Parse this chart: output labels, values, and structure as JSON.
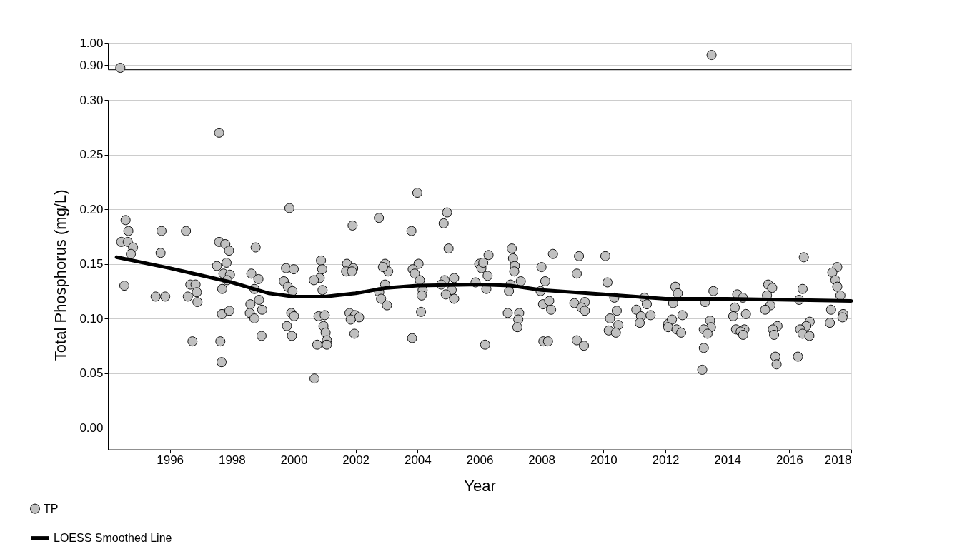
{
  "chart_data": [
    {
      "type": "scatter",
      "xlim": [
        1994,
        2018
      ],
      "xticks": [
        1996,
        1998,
        2000,
        2002,
        2004,
        2006,
        2008,
        2010,
        2012,
        2014,
        2016,
        2018
      ],
      "ylim": [
        0.88,
        1.0
      ],
      "yticks": [
        {
          "value": 0.9,
          "label": "0.90"
        },
        {
          "value": 1.0,
          "label": "1.00"
        }
      ],
      "grid": "y",
      "tick_labels": "y",
      "series": [
        {
          "color": "#c0c0c0",
          "marker": "circle",
          "x": [
            1994.4,
            2013.49
          ],
          "values": [
            0.887,
            0.945
          ]
        }
      ]
    },
    {
      "type": "scatter",
      "xlabel": "Year",
      "ylabel": "Total Phosphorus (mg/L)",
      "xlim": [
        1994,
        2018
      ],
      "xticks": [
        1996,
        1998,
        2000,
        2002,
        2004,
        2006,
        2008,
        2010,
        2012,
        2014,
        2016,
        2018
      ],
      "ylim": [
        -0.02,
        0.3
      ],
      "yticks": [
        {
          "value": 0,
          "label": "0.00"
        },
        {
          "value": 0.05,
          "label": "0.05"
        },
        {
          "value": 0.1,
          "label": "0.10"
        },
        {
          "value": 0.15,
          "label": "0.15"
        },
        {
          "value": 0.2,
          "label": "0.20"
        },
        {
          "value": 0.25,
          "label": "0.25"
        },
        {
          "value": 0.3,
          "label": "0.30"
        }
      ],
      "grid": "y",
      "legend": "bottom left",
      "line_style": "solid",
      "series": [
        {
          "name": "TP",
          "type": "scatter",
          "color": "#c0c0c0",
          "marker": "circle",
          "x": [
            1994.57,
            1994.66,
            1994.43,
            1994.64,
            1994.81,
            1994.74,
            1994.53,
            1995.73,
            1995.7,
            1995.54,
            1995.85,
            1996.52,
            1996.66,
            1996.83,
            1996.58,
            1996.87,
            1996.89,
            1996.73,
            1997.59,
            1997.59,
            1997.79,
            1997.91,
            1997.83,
            1997.52,
            1997.73,
            1997.94,
            1997.85,
            1997.69,
            1997.68,
            1997.92,
            1997.63,
            1997.67,
            1998.77,
            1998.63,
            1998.86,
            1998.73,
            1998.88,
            1998.6,
            1998.58,
            1998.98,
            1998.73,
            1998.96,
            1999.86,
            1999.75,
            2000.0,
            1999.68,
            1999.81,
            1999.96,
            1999.92,
            2000.01,
            1999.78,
            1999.94,
            2000.88,
            2000.92,
            2000.84,
            2000.65,
            2000.93,
            2000.8,
            2001.0,
            2000.96,
            2001.03,
            2001.07,
            2000.76,
            2001.07,
            2000.67,
            2001.9,
            2001.72,
            2001.92,
            2001.69,
            2001.88,
            2001.8,
            2001.98,
            2002.11,
            2001.84,
            2001.96,
            2002.75,
            2002.95,
            2003.05,
            2002.88,
            2002.95,
            2002.76,
            2002.82,
            2003.01,
            2003.99,
            2004.95,
            2004.84,
            2003.8,
            2005.0,
            2004.03,
            2003.84,
            2003.91,
            2004.07,
            2004.16,
            2004.13,
            2004.11,
            2003.82,
            2004.87,
            2005.18,
            2004.76,
            2005.1,
            2004.91,
            2005.18,
            2005.99,
            2006.06,
            2005.87,
            2006.29,
            2006.12,
            2006.26,
            2006.22,
            2006.18,
            2007.04,
            2007.08,
            2007.14,
            2007.12,
            2007.33,
            2007.0,
            2006.95,
            2006.91,
            2007.28,
            2007.25,
            2007.22,
            2008.37,
            2008.0,
            2008.12,
            2007.97,
            2008.05,
            2008.25,
            2008.31,
            2008.06,
            2008.21,
            2009.21,
            2009.14,
            2009.06,
            2009.4,
            2009.29,
            2009.4,
            2009.14,
            2009.37,
            2010.06,
            2010.13,
            2010.35,
            2010.43,
            2010.21,
            2010.48,
            2010.17,
            2010.4,
            2011.32,
            2011.4,
            2011.06,
            2011.52,
            2011.21,
            2011.17,
            2012.09,
            2012.32,
            2012.4,
            2012.25,
            2012.55,
            2012.21,
            2012.09,
            2012.36,
            2012.51,
            2013.55,
            2013.28,
            2013.44,
            2013.47,
            2013.24,
            2013.36,
            2013.24,
            2013.19,
            2014.32,
            2014.5,
            2014.24,
            2014.6,
            2014.19,
            2014.28,
            2014.55,
            2014.43,
            2014.51,
            2015.32,
            2015.45,
            2015.28,
            2015.39,
            2015.22,
            2015.62,
            2015.47,
            2015.51,
            2015.55,
            2015.59,
            2016.47,
            2016.43,
            2016.32,
            2016.66,
            2016.55,
            2016.35,
            2016.43,
            2016.65,
            2016.28,
            2017.55,
            2017.39,
            2017.49,
            2017.55,
            2017.65,
            2017.35,
            2017.74,
            2017.72,
            2017.31
          ],
          "values": [
            0.19,
            0.18,
            0.17,
            0.17,
            0.165,
            0.159,
            0.13,
            0.18,
            0.16,
            0.12,
            0.12,
            0.18,
            0.131,
            0.131,
            0.12,
            0.124,
            0.115,
            0.079,
            0.27,
            0.17,
            0.168,
            0.162,
            0.151,
            0.148,
            0.141,
            0.14,
            0.135,
            0.127,
            0.104,
            0.107,
            0.079,
            0.06,
            0.165,
            0.141,
            0.136,
            0.127,
            0.117,
            0.113,
            0.105,
            0.108,
            0.1,
            0.084,
            0.201,
            0.146,
            0.145,
            0.134,
            0.129,
            0.125,
            0.105,
            0.102,
            0.093,
            0.084,
            0.153,
            0.145,
            0.137,
            0.135,
            0.126,
            0.102,
            0.103,
            0.093,
            0.087,
            0.08,
            0.076,
            0.076,
            0.045,
            0.185,
            0.15,
            0.146,
            0.143,
            0.143,
            0.105,
            0.103,
            0.101,
            0.099,
            0.086,
            0.192,
            0.15,
            0.143,
            0.147,
            0.131,
            0.124,
            0.118,
            0.112,
            0.215,
            0.197,
            0.187,
            0.18,
            0.164,
            0.15,
            0.145,
            0.141,
            0.135,
            0.126,
            0.121,
            0.106,
            0.082,
            0.135,
            0.137,
            0.131,
            0.126,
            0.122,
            0.118,
            0.15,
            0.146,
            0.133,
            0.158,
            0.151,
            0.139,
            0.127,
            0.076,
            0.164,
            0.155,
            0.148,
            0.143,
            0.134,
            0.131,
            0.125,
            0.105,
            0.105,
            0.099,
            0.092,
            0.159,
            0.147,
            0.134,
            0.125,
            0.113,
            0.116,
            0.108,
            0.079,
            0.079,
            0.157,
            0.141,
            0.114,
            0.115,
            0.11,
            0.107,
            0.08,
            0.075,
            0.157,
            0.133,
            0.119,
            0.107,
            0.1,
            0.094,
            0.089,
            0.087,
            0.119,
            0.113,
            0.108,
            0.103,
            0.102,
            0.096,
            0.095,
            0.129,
            0.123,
            0.114,
            0.103,
            0.099,
            0.092,
            0.09,
            0.087,
            0.125,
            0.115,
            0.098,
            0.092,
            0.09,
            0.086,
            0.073,
            0.053,
            0.122,
            0.119,
            0.11,
            0.104,
            0.102,
            0.09,
            0.09,
            0.088,
            0.085,
            0.131,
            0.128,
            0.121,
            0.112,
            0.108,
            0.093,
            0.09,
            0.085,
            0.065,
            0.058,
            0.156,
            0.127,
            0.117,
            0.097,
            0.093,
            0.09,
            0.086,
            0.084,
            0.065,
            0.147,
            0.142,
            0.135,
            0.129,
            0.121,
            0.108,
            0.104,
            0.101,
            0.096
          ]
        },
        {
          "name": "LOESS Smoothed Line",
          "type": "line",
          "color": "#000000",
          "x": [
            1994.28,
            1996,
            1998,
            1999.2,
            2000,
            2001,
            2002,
            2003,
            2004,
            2006,
            2007,
            2008,
            2010,
            2012,
            2014,
            2016,
            2018
          ],
          "values": [
            0.156,
            0.146,
            0.133,
            0.123,
            0.12,
            0.12,
            0.123,
            0.128,
            0.13,
            0.131,
            0.13,
            0.126,
            0.122,
            0.118,
            0.118,
            0.117,
            0.116
          ]
        }
      ]
    }
  ]
}
